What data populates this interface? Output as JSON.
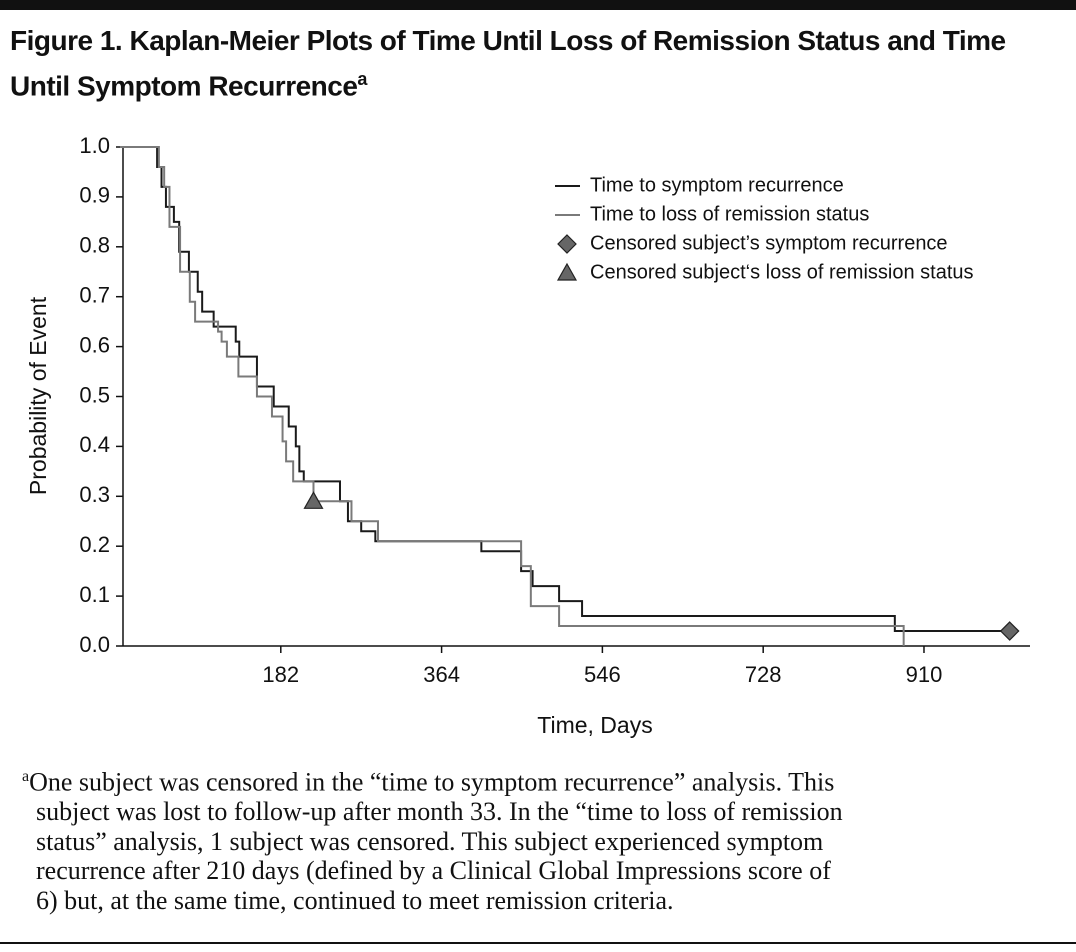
{
  "chart_data": {
    "type": "step",
    "title": "Figure 1. Kaplan-Meier Plots of Time Until Loss of Remission Status and Time Until Symptom Recurrence",
    "title_note_marker": "a",
    "x_label": "Time, Days",
    "y_label": "Probability of Event",
    "xlim": [
      0,
      1030
    ],
    "xticks": [
      182,
      364,
      546,
      728,
      910
    ],
    "ylim": [
      0,
      1
    ],
    "yticks": [
      {
        "value": 0,
        "label": "0.0"
      },
      0.1,
      0.2,
      0.3,
      0.4,
      0.5,
      0.6,
      0.7,
      0.8,
      0.9,
      {
        "value": 1,
        "label": "1.0"
      }
    ],
    "series": [
      {
        "name": "Time to symptom recurrence",
        "color": "#1a1a1a",
        "marker": "line",
        "x": [
          0,
          42,
          47,
          52,
          61,
          67,
          78,
          88,
          93,
          106,
          131,
          135,
          155,
          174,
          191,
          199,
          203,
          208,
          249,
          258,
          273,
          289,
          409,
          454,
          467,
          497,
          523,
          877,
          1007
        ],
        "values": [
          1.0,
          0.96,
          0.92,
          0.88,
          0.85,
          0.79,
          0.75,
          0.71,
          0.67,
          0.64,
          0.61,
          0.58,
          0.52,
          0.48,
          0.44,
          0.4,
          0.35,
          0.33,
          0.29,
          0.25,
          0.23,
          0.21,
          0.19,
          0.15,
          0.12,
          0.09,
          0.06,
          0.03,
          0.03
        ]
      },
      {
        "name": "Time to loss of remission status",
        "color": "#7a7a7a",
        "marker": "line",
        "x": [
          0,
          44,
          50,
          56,
          68,
          79,
          85,
          111,
          115,
          121,
          134,
          155,
          172,
          184,
          188,
          196,
          219,
          262,
          292,
          454,
          465,
          497,
          887
        ],
        "values": [
          1.0,
          0.96,
          0.92,
          0.84,
          0.75,
          0.69,
          0.65,
          0.63,
          0.61,
          0.58,
          0.54,
          0.5,
          0.46,
          0.41,
          0.37,
          0.33,
          0.29,
          0.25,
          0.21,
          0.16,
          0.08,
          0.04,
          0.0
        ]
      },
      {
        "name": "Censored subject’s symptom recurrence",
        "color": "#666666",
        "marker": "diamond",
        "x": [
          1007
        ],
        "values": [
          0.03
        ]
      },
      {
        "name": "Censored subject‘s loss of remission status",
        "color": "#666666",
        "marker": "triangle",
        "x": [
          219
        ],
        "values": [
          0.29
        ]
      }
    ]
  },
  "footnote": {
    "marker": "a",
    "lines": [
      "One subject was censored in the “time to symptom recurrence” analysis. This",
      "subject was lost to follow-up after month 33. In the “time to loss of remission",
      "status” analysis, 1 subject was censored. This subject experienced symptom",
      "recurrence after 210 days (defined by a Clinical Global Impressions score of",
      "6) but, at the same time, continued to meet remission criteria."
    ]
  }
}
